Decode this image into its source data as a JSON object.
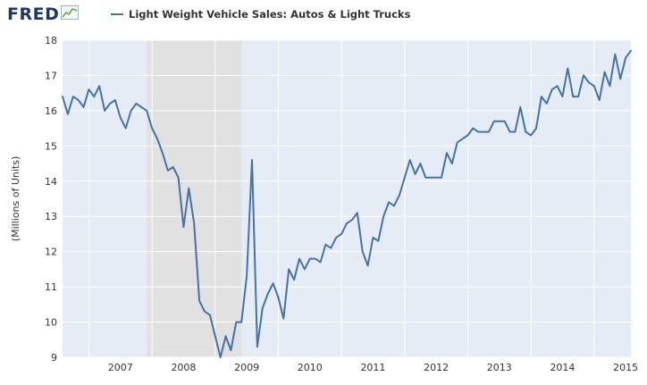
{
  "header": {
    "logo_text": "FRED",
    "logo_icon": "trend-line-icon",
    "legend_label": "Light Weight Vehicle Sales: Autos & Light Trucks"
  },
  "colors": {
    "series": "#4572a7",
    "plot_bg": "#e5ecf6",
    "recession": "#e1e1e1",
    "grid": "#ffffff",
    "logo": "#1f3a60"
  },
  "chart_data": {
    "type": "line",
    "title": "",
    "xlabel": "",
    "ylabel": "(Millions of Units)",
    "ylim": [
      9,
      18
    ],
    "yticks": [
      9,
      10,
      11,
      12,
      13,
      14,
      15,
      16,
      17,
      18
    ],
    "xlim": [
      "2006-08",
      "2015-08"
    ],
    "xticks": [
      "2007",
      "2008",
      "2009",
      "2010",
      "2011",
      "2012",
      "2013",
      "2014",
      "2015"
    ],
    "grid": true,
    "recession_shading": {
      "start": "2007-12",
      "end": "2009-06"
    },
    "series": [
      {
        "name": "Light Weight Vehicle Sales: Autos & Light Trucks",
        "x": [
          "2006-08",
          "2006-09",
          "2006-10",
          "2006-11",
          "2006-12",
          "2007-01",
          "2007-02",
          "2007-03",
          "2007-04",
          "2007-05",
          "2007-06",
          "2007-07",
          "2007-08",
          "2007-09",
          "2007-10",
          "2007-11",
          "2007-12",
          "2008-01",
          "2008-02",
          "2008-03",
          "2008-04",
          "2008-05",
          "2008-06",
          "2008-07",
          "2008-08",
          "2008-09",
          "2008-10",
          "2008-11",
          "2008-12",
          "2009-01",
          "2009-02",
          "2009-03",
          "2009-04",
          "2009-05",
          "2009-06",
          "2009-07",
          "2009-08",
          "2009-09",
          "2009-10",
          "2009-11",
          "2009-12",
          "2010-01",
          "2010-02",
          "2010-03",
          "2010-04",
          "2010-05",
          "2010-06",
          "2010-07",
          "2010-08",
          "2010-09",
          "2010-10",
          "2010-11",
          "2010-12",
          "2011-01",
          "2011-02",
          "2011-03",
          "2011-04",
          "2011-05",
          "2011-06",
          "2011-07",
          "2011-08",
          "2011-09",
          "2011-10",
          "2011-11",
          "2011-12",
          "2012-01",
          "2012-02",
          "2012-03",
          "2012-04",
          "2012-05",
          "2012-06",
          "2012-07",
          "2012-08",
          "2012-09",
          "2012-10",
          "2012-11",
          "2012-12",
          "2013-01",
          "2013-02",
          "2013-03",
          "2013-04",
          "2013-05",
          "2013-06",
          "2013-07",
          "2013-08",
          "2013-09",
          "2013-10",
          "2013-11",
          "2013-12",
          "2014-01",
          "2014-02",
          "2014-03",
          "2014-04",
          "2014-05",
          "2014-06",
          "2014-07",
          "2014-08",
          "2014-09",
          "2014-10",
          "2014-11",
          "2014-12",
          "2015-01",
          "2015-02",
          "2015-03",
          "2015-04",
          "2015-05",
          "2015-06",
          "2015-07",
          "2015-08"
        ],
        "values": [
          16.4,
          15.9,
          16.4,
          16.3,
          16.1,
          16.6,
          16.4,
          16.7,
          16.0,
          16.2,
          16.3,
          15.8,
          15.5,
          16.0,
          16.2,
          16.1,
          16.0,
          15.5,
          15.2,
          14.8,
          14.3,
          14.4,
          14.1,
          12.7,
          13.8,
          12.8,
          10.6,
          10.3,
          10.2,
          9.6,
          9.0,
          9.6,
          9.2,
          10.0,
          10.0,
          11.3,
          14.6,
          9.3,
          10.4,
          10.8,
          11.1,
          10.7,
          10.1,
          11.5,
          11.2,
          11.8,
          11.5,
          11.8,
          11.8,
          11.7,
          12.2,
          12.1,
          12.4,
          12.5,
          12.8,
          12.9,
          13.1,
          12.0,
          11.6,
          12.4,
          12.3,
          13.0,
          13.4,
          13.3,
          13.6,
          14.1,
          14.6,
          14.2,
          14.5,
          14.1,
          14.1,
          14.1,
          14.1,
          14.8,
          14.5,
          15.1,
          15.2,
          15.3,
          15.5,
          15.4,
          15.4,
          15.4,
          15.7,
          15.7,
          15.7,
          15.4,
          15.4,
          16.1,
          15.4,
          15.3,
          15.5,
          16.4,
          16.2,
          16.6,
          16.7,
          16.4,
          17.2,
          16.4,
          16.4,
          17.0,
          16.8,
          16.7,
          16.3,
          17.1,
          16.7,
          17.6,
          16.9,
          17.5,
          17.7
        ]
      }
    ]
  }
}
